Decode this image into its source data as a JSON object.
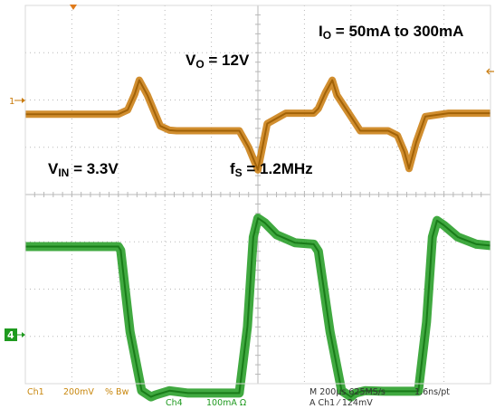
{
  "chart_data": {
    "type": "line",
    "title": "",
    "xlabel": "",
    "ylabel": "",
    "x_unit": "µs",
    "xlim": [
      0,
      2000
    ],
    "grid": true,
    "colors": {
      "ch1": "#c97a0a",
      "ch4": "#1f9a1f",
      "grid": "#b8b8b8",
      "frame": "#d8d8d8",
      "status_text": "#c8870e"
    },
    "series": [
      {
        "channel": "1",
        "x": [
          0,
          400,
          440,
          470,
          490,
          525,
          580,
          620,
          650,
          680,
          700,
          800,
          880,
          920,
          960,
          1000,
          1040,
          1120,
          1180,
          1240,
          1260,
          1290,
          1320,
          1340,
          1440,
          1560,
          1600,
          1630,
          1650,
          1680,
          1720,
          1820,
          1920,
          2000
        ],
        "y": [
          0,
          0,
          0.09,
          0.42,
          0.72,
          0.4,
          -0.25,
          -0.34,
          -0.35,
          -0.35,
          -0.35,
          -0.35,
          -0.35,
          -0.35,
          -0.7,
          -1.18,
          -0.2,
          0.02,
          0.02,
          0.02,
          0.12,
          0.45,
          0.72,
          0.4,
          -0.35,
          -0.35,
          -0.45,
          -0.8,
          -1.15,
          -0.6,
          -0.05,
          0.02,
          0.02,
          0.02
        ]
      },
      {
        "channel": "4",
        "x": [
          0,
          400,
          410,
          450,
          500,
          540,
          560,
          620,
          700,
          800,
          920,
          955,
          980,
          1000,
          1030,
          1080,
          1160,
          1240,
          1260,
          1310,
          1360,
          1400,
          1420,
          1460,
          1540,
          1600,
          1690,
          1725,
          1750,
          1770,
          1800,
          1860,
          1940,
          2000
        ],
        "y": [
          0,
          0,
          -0.08,
          -1.8,
          -3.05,
          -3.18,
          -3.14,
          -3.05,
          -3.1,
          -3.1,
          -3.1,
          -1.7,
          0.2,
          0.6,
          0.5,
          0.25,
          0.08,
          0.05,
          -0.1,
          -1.8,
          -3.05,
          -3.18,
          -3.1,
          -3.05,
          -3.06,
          -3.06,
          -3.06,
          -1.6,
          0.2,
          0.55,
          0.45,
          0.2,
          0.05,
          0.02
        ]
      }
    ],
    "annotations": {
      "io": {
        "main": "I",
        "sub": "O",
        "rest": " = 50mA to 300mA"
      },
      "vo": {
        "main": "V",
        "sub": "O",
        "rest": " = 12V"
      },
      "vin": {
        "main": "V",
        "sub": "IN",
        "rest": " = 3.3V"
      },
      "fs": {
        "main": "f",
        "sub": "S",
        "rest": " = 1.2MHz"
      }
    },
    "markers": {
      "ch1": "1",
      "ch4": "4"
    },
    "status": {
      "ch1_label": "Ch1",
      "ch1_scale": "200mV",
      "ch1_coupling": "% Bw",
      "ch4_label": "Ch4",
      "ch4_scale": "100mA  Ω",
      "timebase": "M 200µs 625MS/s",
      "resolution": "1.6ns/pt",
      "trigger": "A  Ch1  ⁄  124mV"
    }
  }
}
